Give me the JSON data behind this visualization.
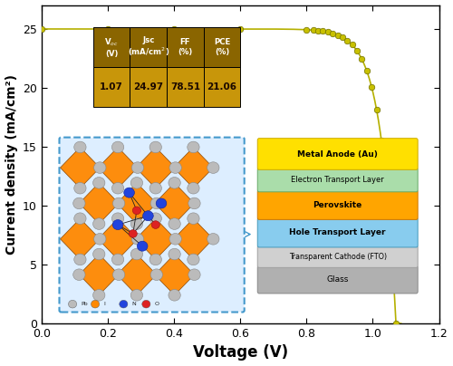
{
  "xlabel": "Voltage (V)",
  "ylabel": "Current density (mA/cm²)",
  "xlim": [
    0.0,
    1.2
  ],
  "ylim": [
    0.0,
    27.0
  ],
  "xticks": [
    0.0,
    0.2,
    0.4,
    0.6,
    0.8,
    1.0,
    1.2
  ],
  "yticks": [
    0,
    5,
    10,
    15,
    20,
    25
  ],
  "Voc": 1.07,
  "Jsc": 24.97,
  "FF": 78.51,
  "PCE": 21.06,
  "curve_color": "#b5b000",
  "marker_face": "#c8c000",
  "marker_edge": "#707000",
  "table_gold": "#c8960a",
  "table_dark_gold": "#8a6500"
}
